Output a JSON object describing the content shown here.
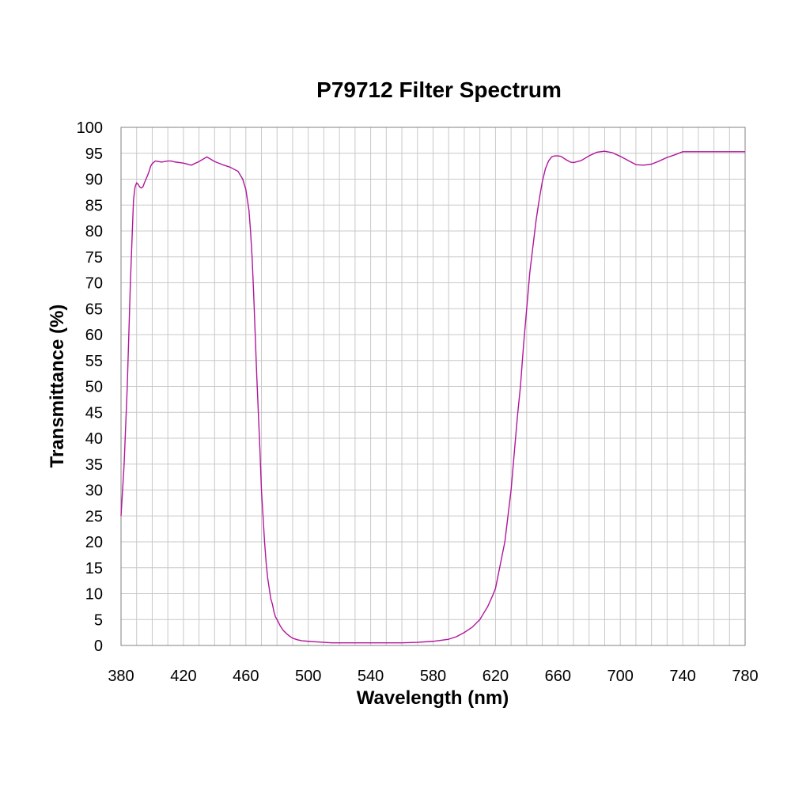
{
  "chart_data": {
    "type": "line",
    "title": "P79712 Filter Spectrum",
    "xlabel": "Wavelength (nm)",
    "ylabel": "Transmittance (%)",
    "xlim": [
      380,
      780
    ],
    "ylim": [
      0,
      100
    ],
    "x_ticks": [
      380,
      420,
      460,
      500,
      540,
      580,
      620,
      660,
      700,
      740,
      780
    ],
    "y_ticks": [
      0,
      5,
      10,
      15,
      20,
      25,
      30,
      35,
      40,
      45,
      50,
      55,
      60,
      65,
      70,
      75,
      80,
      85,
      90,
      95,
      100
    ],
    "grid": true,
    "legend": "none",
    "line_color": "#b0169b",
    "series": [
      {
        "x": [
          380,
          382,
          384,
          386,
          388,
          389,
          390,
          391,
          392,
          393,
          394,
          395,
          396,
          397,
          398,
          399,
          400,
          402,
          404,
          406,
          408,
          410,
          412,
          415,
          420,
          425,
          430,
          435,
          440,
          445,
          450,
          455,
          458,
          460,
          462,
          463,
          464,
          465,
          466,
          467,
          468,
          469,
          470,
          471,
          472,
          473,
          474,
          475,
          476,
          477,
          478,
          479,
          480,
          482,
          484,
          486,
          488,
          490,
          493,
          496,
          500,
          505,
          510,
          515,
          520,
          530,
          540,
          550,
          560,
          570,
          580,
          590,
          595,
          600,
          605,
          610,
          612,
          615,
          618,
          620,
          622,
          624,
          626,
          628,
          630,
          632,
          634,
          636,
          638,
          640,
          642,
          644,
          646,
          648,
          650,
          652,
          654,
          656,
          658,
          660,
          662,
          665,
          668,
          670,
          675,
          680,
          685,
          690,
          695,
          700,
          705,
          710,
          715,
          720,
          725,
          730,
          735,
          740,
          745,
          750,
          755,
          760,
          765,
          770,
          775,
          780
        ],
        "values": [
          25,
          35,
          50,
          70,
          86,
          88.5,
          89.3,
          89,
          88.5,
          88.3,
          88.5,
          89.3,
          90,
          90.7,
          91.5,
          92.5,
          93,
          93.5,
          93.4,
          93.3,
          93.4,
          93.5,
          93.5,
          93.3,
          93.1,
          92.7,
          93.4,
          94.3,
          93.4,
          92.8,
          92.3,
          91.5,
          90,
          88,
          84,
          80,
          75,
          68,
          60,
          52,
          45,
          38,
          30,
          25,
          20,
          16,
          13,
          11,
          9,
          8,
          6.5,
          5.5,
          5,
          3.8,
          2.9,
          2.3,
          1.8,
          1.4,
          1.1,
          0.9,
          0.8,
          0.7,
          0.6,
          0.5,
          0.5,
          0.5,
          0.5,
          0.5,
          0.5,
          0.6,
          0.8,
          1.2,
          1.7,
          2.5,
          3.5,
          5,
          6,
          7.5,
          9.5,
          11,
          14,
          17,
          20,
          25,
          30,
          37,
          44,
          50,
          58,
          65,
          72,
          77,
          82,
          86,
          89.5,
          92,
          93.5,
          94.3,
          94.5,
          94.5,
          94.4,
          93.8,
          93.3,
          93.2,
          93.6,
          94.5,
          95.2,
          95.4,
          95.1,
          94.4,
          93.6,
          92.8,
          92.7,
          92.9,
          93.5,
          94.2,
          94.7,
          95.3,
          95.3,
          95.3,
          95.3,
          95.3,
          95.3,
          95.3,
          95.3,
          95.3
        ]
      }
    ]
  }
}
